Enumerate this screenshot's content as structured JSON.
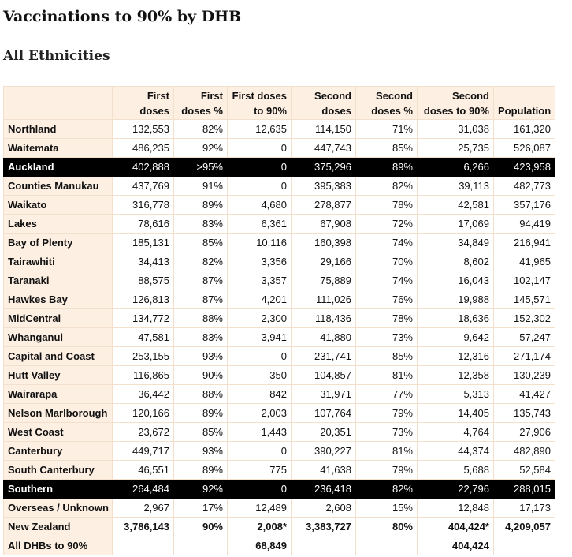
{
  "title": "Vaccinations to 90% by DHB",
  "subtitle": "All Ethnicities",
  "headers": {
    "dhb": "",
    "first_doses": "First doses",
    "first_pct": "First doses %",
    "first_to90": "First doses to 90%",
    "second_doses": "Second doses",
    "second_pct": "Second doses %",
    "second_to90": "Second doses to 90%",
    "population": "Population"
  },
  "rows": [
    {
      "dhb": "Northland",
      "first": "132,553",
      "first_pct": "82%",
      "first_to90": "12,635",
      "second": "114,150",
      "second_pct": "71%",
      "second_to90": "31,038",
      "pop": "161,320"
    },
    {
      "dhb": "Waitemata",
      "first": "486,235",
      "first_pct": "92%",
      "first_to90": "0",
      "second": "447,743",
      "second_pct": "85%",
      "second_to90": "25,735",
      "pop": "526,087"
    },
    {
      "dhb": "Auckland",
      "first": "402,888",
      "first_pct": ">95%",
      "first_to90": "0",
      "second": "375,296",
      "second_pct": "89%",
      "second_to90": "6,266",
      "pop": "423,958"
    },
    {
      "dhb": "Counties Manukau",
      "first": "437,769",
      "first_pct": "91%",
      "first_to90": "0",
      "second": "395,383",
      "second_pct": "82%",
      "second_to90": "39,113",
      "pop": "482,773"
    },
    {
      "dhb": "Waikato",
      "first": "316,778",
      "first_pct": "89%",
      "first_to90": "4,680",
      "second": "278,877",
      "second_pct": "78%",
      "second_to90": "42,581",
      "pop": "357,176"
    },
    {
      "dhb": "Lakes",
      "first": "78,616",
      "first_pct": "83%",
      "first_to90": "6,361",
      "second": "67,908",
      "second_pct": "72%",
      "second_to90": "17,069",
      "pop": "94,419"
    },
    {
      "dhb": "Bay of Plenty",
      "first": "185,131",
      "first_pct": "85%",
      "first_to90": "10,116",
      "second": "160,398",
      "second_pct": "74%",
      "second_to90": "34,849",
      "pop": "216,941"
    },
    {
      "dhb": "Tairawhiti",
      "first": "34,413",
      "first_pct": "82%",
      "first_to90": "3,356",
      "second": "29,166",
      "second_pct": "70%",
      "second_to90": "8,602",
      "pop": "41,965"
    },
    {
      "dhb": "Taranaki",
      "first": "88,575",
      "first_pct": "87%",
      "first_to90": "3,357",
      "second": "75,889",
      "second_pct": "74%",
      "second_to90": "16,043",
      "pop": "102,147"
    },
    {
      "dhb": "Hawkes Bay",
      "first": "126,813",
      "first_pct": "87%",
      "first_to90": "4,201",
      "second": "111,026",
      "second_pct": "76%",
      "second_to90": "19,988",
      "pop": "145,571"
    },
    {
      "dhb": "MidCentral",
      "first": "134,772",
      "first_pct": "88%",
      "first_to90": "2,300",
      "second": "118,436",
      "second_pct": "78%",
      "second_to90": "18,636",
      "pop": "152,302"
    },
    {
      "dhb": "Whanganui",
      "first": "47,581",
      "first_pct": "83%",
      "first_to90": "3,941",
      "second": "41,880",
      "second_pct": "73%",
      "second_to90": "9,642",
      "pop": "57,247"
    },
    {
      "dhb": "Capital and Coast",
      "first": "253,155",
      "first_pct": "93%",
      "first_to90": "0",
      "second": "231,741",
      "second_pct": "85%",
      "second_to90": "12,316",
      "pop": "271,174"
    },
    {
      "dhb": "Hutt Valley",
      "first": "116,865",
      "first_pct": "90%",
      "first_to90": "350",
      "second": "104,857",
      "second_pct": "81%",
      "second_to90": "12,358",
      "pop": "130,239"
    },
    {
      "dhb": "Wairarapa",
      "first": "36,442",
      "first_pct": "88%",
      "first_to90": "842",
      "second": "31,971",
      "second_pct": "77%",
      "second_to90": "5,313",
      "pop": "41,427"
    },
    {
      "dhb": "Nelson Marlborough",
      "first": "120,166",
      "first_pct": "89%",
      "first_to90": "2,003",
      "second": "107,764",
      "second_pct": "79%",
      "second_to90": "14,405",
      "pop": "135,743"
    },
    {
      "dhb": "West Coast",
      "first": "23,672",
      "first_pct": "85%",
      "first_to90": "1,443",
      "second": "20,351",
      "second_pct": "73%",
      "second_to90": "4,764",
      "pop": "27,906"
    },
    {
      "dhb": "Canterbury",
      "first": "449,717",
      "first_pct": "93%",
      "first_to90": "0",
      "second": "390,227",
      "second_pct": "81%",
      "second_to90": "44,374",
      "pop": "482,890"
    },
    {
      "dhb": "South Canterbury",
      "first": "46,551",
      "first_pct": "89%",
      "first_to90": "775",
      "second": "41,638",
      "second_pct": "79%",
      "second_to90": "5,688",
      "pop": "52,584"
    },
    {
      "dhb": "Southern",
      "first": "264,484",
      "first_pct": "92%",
      "first_to90": "0",
      "second": "236,418",
      "second_pct": "82%",
      "second_to90": "22,796",
      "pop": "288,015"
    },
    {
      "dhb": "Overseas / Unknown",
      "first": "2,967",
      "first_pct": "17%",
      "first_to90": "12,489",
      "second": "2,608",
      "second_pct": "15%",
      "second_to90": "12,848",
      "pop": "17,173"
    },
    {
      "dhb": "New Zealand",
      "first": "3,786,143",
      "first_pct": "90%",
      "first_to90": "2,008*",
      "second": "3,383,727",
      "second_pct": "80%",
      "second_to90": "404,424*",
      "pop": "4,209,057"
    },
    {
      "dhb": "All DHBs to 90%",
      "first": "",
      "first_pct": "",
      "first_to90": "68,849",
      "second": "",
      "second_pct": "",
      "second_to90": "404,424",
      "pop": ""
    }
  ],
  "highlight_rows": [
    "Auckland",
    "Southern"
  ],
  "bold_rows": [
    "New Zealand",
    "All DHBs to 90%"
  ],
  "colors": {
    "header_bg": "#fdefe2",
    "highlight_bg": "#000000",
    "highlight_text": "#ffffff",
    "border": "#f2dfcc"
  }
}
